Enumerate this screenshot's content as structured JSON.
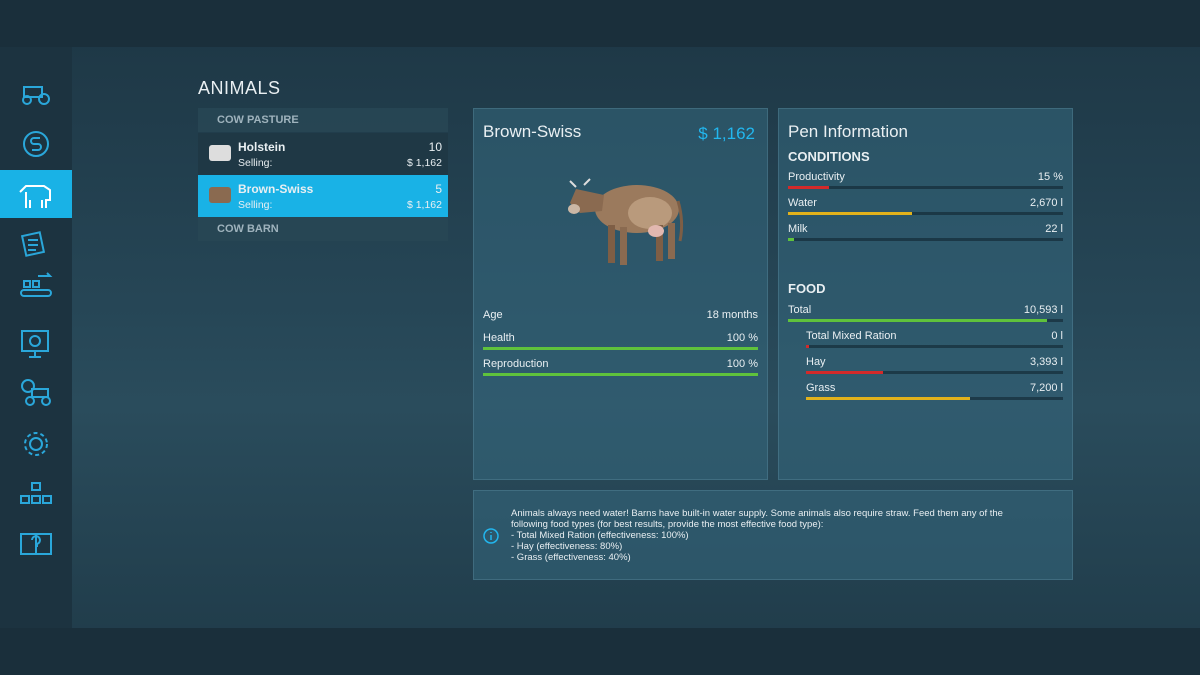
{
  "header": {
    "title": "ANIMALS"
  },
  "list": {
    "sections": [
      {
        "title": "COW PASTURE",
        "items": [
          {
            "name": "Holstein",
            "count": 10,
            "label": "Selling:",
            "price": "$ 1,162",
            "selected": false
          },
          {
            "name": "Brown-Swiss",
            "count": 5,
            "label": "Selling:",
            "price": "$ 1,162",
            "selected": true
          }
        ]
      },
      {
        "title": "COW BARN"
      }
    ]
  },
  "animal": {
    "name": "Brown-Swiss",
    "price": "$ 1,162",
    "age": {
      "label": "Age",
      "value": "18 months"
    },
    "stats": [
      {
        "label": "Health",
        "value": "100 %",
        "fill": 100,
        "color": "#5fc23c"
      },
      {
        "label": "Reproduction",
        "value": "100 %",
        "fill": 100,
        "color": "#5fc23c"
      }
    ]
  },
  "pen": {
    "title": "Pen Information",
    "conditions": {
      "title": "CONDITIONS",
      "rows": [
        {
          "label": "Productivity",
          "value": "15 %",
          "fill": 15,
          "color": "#d32a2a",
          "indent": false
        },
        {
          "label": "Water",
          "value": "2,670 l",
          "fill": 45,
          "color": "#e2b21c",
          "indent": false
        },
        {
          "label": "Milk",
          "value": "22 l",
          "fill": 2,
          "color": "#5fc23c",
          "indent": false
        }
      ]
    },
    "food": {
      "title": "FOOD",
      "rows": [
        {
          "label": "Total",
          "value": "10,593 l",
          "fill": 94,
          "color": "#5fc23c",
          "indent": false
        },
        {
          "label": "Total Mixed Ration",
          "value": "0 l",
          "fill": 1,
          "color": "#d32a2a",
          "indent": true
        },
        {
          "label": "Hay",
          "value": "3,393 l",
          "fill": 30,
          "color": "#d32a2a",
          "indent": true
        },
        {
          "label": "Grass",
          "value": "7,200 l",
          "fill": 64,
          "color": "#e2b21c",
          "indent": true
        }
      ]
    }
  },
  "info": {
    "lines": [
      "Animals always need water! Barns have built-in water supply. Some animals also require straw. Feed them any of the",
      "following food types (for best results, provide the most effective food type):",
      "- Total Mixed Ration (effectiveness: 100%)",
      "- Hay (effectiveness: 80%)",
      "- Grass (effectiveness: 40%)"
    ]
  }
}
